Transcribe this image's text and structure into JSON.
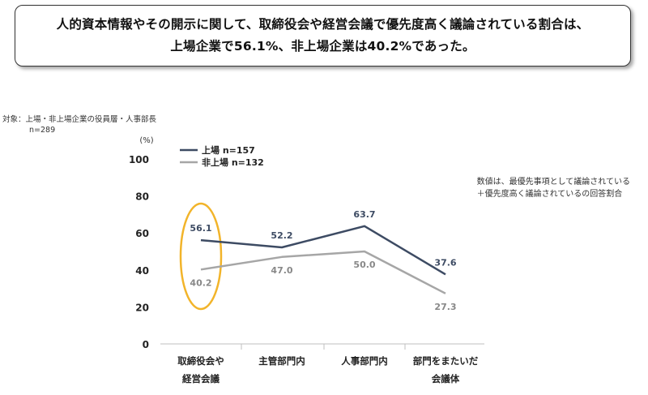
{
  "headline": {
    "line1": "人的資本情報やその開示に関して、取締役会や経営会議で優先度高く議論されている割合は、",
    "line2": "上場企業で56.1%、非上場企業は40.2%であった。"
  },
  "subject": {
    "label": "対象：上場・非上場企業の役員層・人事部長",
    "n": "n=289"
  },
  "note": {
    "line1": "数値は、最優先事項として議論されている",
    "line2": "＋優先度高く議論されているの回答割合"
  },
  "colors": {
    "listed": "#3d4b63",
    "unlisted": "#a6a6a6",
    "highlight": "#f2b42a"
  },
  "chart_data": {
    "type": "line",
    "unit_label": "(%)",
    "ylim": [
      0,
      100
    ],
    "yticks": [
      "0",
      "20",
      "40",
      "60",
      "80",
      "100"
    ],
    "categories": [
      [
        "取締役会や",
        "経営会議"
      ],
      [
        "主管部門内"
      ],
      [
        "人事部門内"
      ],
      [
        "部門をまたいだ",
        "会議体"
      ]
    ],
    "series": [
      {
        "name": "上場 n=157",
        "values": [
          56.1,
          52.2,
          63.7,
          37.6
        ],
        "labels": [
          "56.1",
          "52.2",
          "63.7",
          "37.6"
        ]
      },
      {
        "name": "非上場 n=132",
        "values": [
          40.2,
          47.0,
          50.0,
          27.3
        ],
        "labels": [
          "40.2",
          "47.0",
          "50.0",
          "27.3"
        ]
      }
    ],
    "grid": false,
    "legend": "top-left"
  }
}
